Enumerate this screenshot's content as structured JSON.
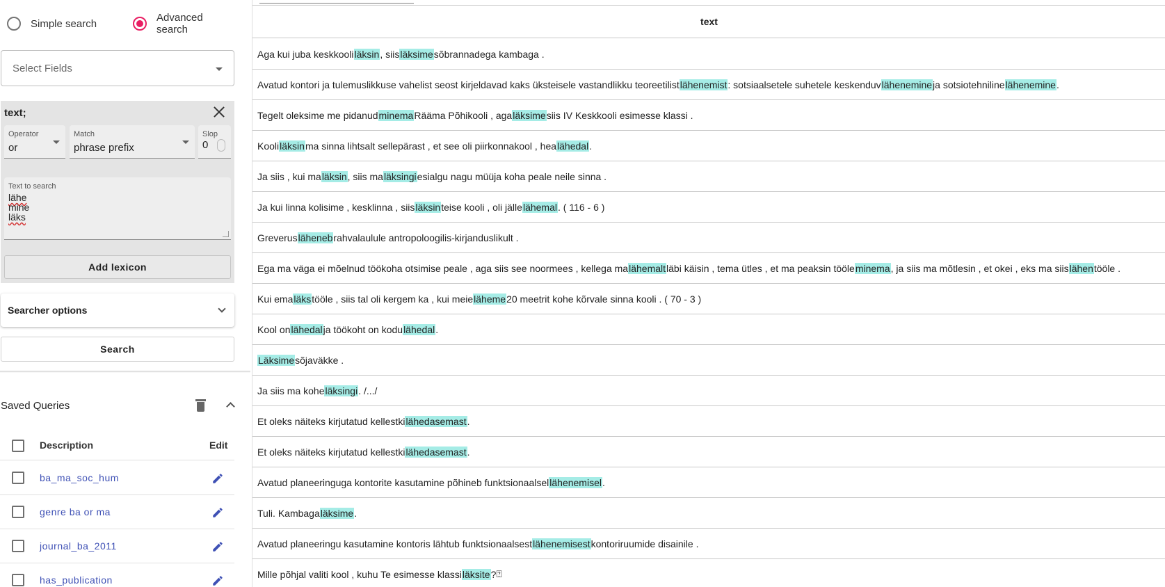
{
  "search_mode": {
    "simple_label": "Simple search",
    "advanced_label": "Advanced search",
    "selected": "advanced"
  },
  "select_fields": {
    "placeholder": "Select Fields"
  },
  "query": {
    "title": "text;",
    "operator": {
      "label": "Operator",
      "value": "or"
    },
    "match": {
      "label": "Match",
      "value": "phrase prefix"
    },
    "slop": {
      "label": "Slop",
      "value": "0"
    },
    "text_to_search": {
      "label": "Text to search",
      "lines": [
        "lähe",
        "mine",
        "läks"
      ]
    },
    "add_lexicon_label": "Add lexicon"
  },
  "searcher_options_label": "Searcher options",
  "search_button_label": "Search",
  "saved_queries": {
    "title": "Saved Queries",
    "col_description": "Description",
    "col_edit": "Edit",
    "items": [
      "ba_ma_soc_hum",
      "genre ba or ma",
      "journal_ba_2011",
      "has_publication"
    ]
  },
  "results": {
    "column": "text",
    "rows": [
      [
        "Aga kui juba keskkooli ",
        {
          "h": "läksin"
        },
        " , siis ",
        {
          "h": "läksime"
        },
        " sõbrannadega kambaga ."
      ],
      [
        "Avatud kontori ja tulemuslikkuse vahelist seost kirjeldavad kaks üksteisele vastandlikku teoreetilist ",
        {
          "h": "lähenemist"
        },
        " : sotsiaalsetele suhetele keskenduv ",
        {
          "h": "lähenemine"
        },
        " ja sotsiotehniline ",
        {
          "h": "lähenemine"
        },
        " ."
      ],
      [
        "Tegelt oleksime me pidanud ",
        {
          "h": "minema"
        },
        " Rääma Põhikooli , aga ",
        {
          "h": "läksime"
        },
        " siis IV Keskkooli esimesse klassi ."
      ],
      [
        "Kooli ",
        {
          "h": "läksin"
        },
        " ma sinna lihtsalt sellepärast , et see oli piirkonnakool , hea ",
        {
          "h": "lähedal"
        },
        " ."
      ],
      [
        "Ja siis , kui ma ",
        {
          "h": "läksin"
        },
        " , siis ma ",
        {
          "h": "läksingi"
        },
        " esialgu nagu müüja koha peale neile sinna ."
      ],
      [
        "Ja kui linna kolisime , kesklinna , siis ",
        {
          "h": "läksin"
        },
        " teise kooli , oli jälle ",
        {
          "h": "lähemal"
        },
        " . ( 116 - 6 )"
      ],
      [
        "Greverus ",
        {
          "h": "läheneb"
        },
        " rahvalaulule antropoloogilis-kirjanduslikult ."
      ],
      [
        "Ega ma väga ei mõelnud töökoha otsimise peale , aga siis see noormees , kellega ma ",
        {
          "h": "lähemalt"
        },
        " läbi käisin , tema ütles , et ma peaksin tööle ",
        {
          "h": "minema"
        },
        " , ja siis ma mõtlesin , et okei , eks ma siis ",
        {
          "h": "lähen"
        },
        " tööle ."
      ],
      [
        "Kui ema ",
        {
          "h": "läks"
        },
        " tööle , siis tal oli kergem ka , kui meie ",
        {
          "h": "läheme"
        },
        " 20 meetrit kohe kõrvale sinna kooli . ( 70 - 3 )"
      ],
      [
        "Kool on ",
        {
          "h": "lähedal"
        },
        " ja töökoht on kodu ",
        {
          "h": "lähedal"
        },
        " ."
      ],
      [
        {
          "h": "Läksime"
        },
        " sõjaväkke ."
      ],
      [
        "Ja siis ma kohe ",
        {
          "h": "läksingi"
        },
        " . /.../"
      ],
      [
        "Et oleks näiteks kirjutatud kellestki ",
        {
          "h": "lähedasemast"
        },
        " ."
      ],
      [
        "Et oleks näiteks kirjutatud kellestki ",
        {
          "h": "lähedasemast"
        },
        " ."
      ],
      [
        "Avatud planeeringuga kontorite kasutamine põhineb funktsionaalsel ",
        {
          "h": "lähenemisel"
        },
        " ."
      ],
      [
        "Tuli. Kambaga ",
        {
          "h": "läksime"
        },
        " ."
      ],
      [
        "Avatud planeeringu kasutamine kontoris lähtub funktsionaalsest ",
        {
          "h": "lähenemisest"
        },
        " kontoriruumide disainile ."
      ],
      [
        "Mille põhjal valiti kool , kuhu Te esimesse klassi ",
        {
          "h": "läksite"
        },
        " ? ",
        {
          "g": "⍰"
        }
      ]
    ]
  },
  "colors": {
    "accent": "#e91e63",
    "link": "#3f51b5",
    "highlight": "#a5ece6"
  },
  "icons": [
    "chevron-down-icon",
    "close-icon",
    "trash-icon",
    "chevron-up-icon",
    "pencil-icon"
  ]
}
